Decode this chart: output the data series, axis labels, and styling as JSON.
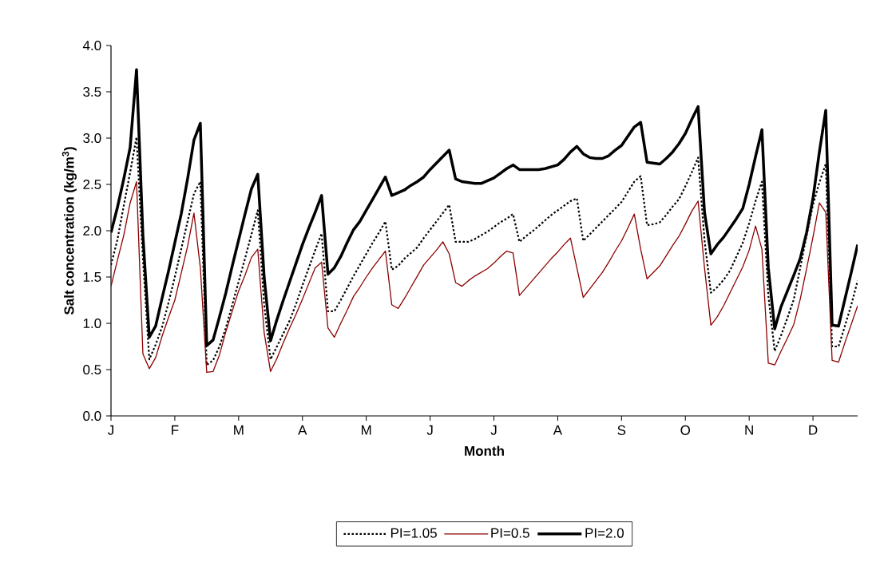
{
  "chart_data": {
    "type": "line",
    "xlabel": "Month",
    "ylabel": "**Salt concentration (kg/m$^{3}$)**",
    "categories": [
      "J",
      null,
      null,
      null,
      null,
      null,
      null,
      null,
      null,
      null,
      "F",
      null,
      null,
      null,
      null,
      null,
      null,
      null,
      null,
      null,
      "M",
      null,
      null,
      null,
      null,
      null,
      null,
      null,
      null,
      null,
      "A",
      null,
      null,
      null,
      null,
      null,
      null,
      null,
      null,
      null,
      "M",
      null,
      null,
      null,
      null,
      null,
      null,
      null,
      null,
      null,
      "J",
      null,
      null,
      null,
      null,
      null,
      null,
      null,
      null,
      null,
      "J",
      null,
      null,
      null,
      null,
      null,
      null,
      null,
      null,
      null,
      "A",
      null,
      null,
      null,
      null,
      null,
      null,
      null,
      null,
      null,
      "S",
      null,
      null,
      null,
      null,
      null,
      null,
      null,
      null,
      null,
      "O",
      null,
      null,
      null,
      null,
      null,
      null,
      null,
      null,
      null,
      "N",
      null,
      null,
      null,
      null,
      null,
      null,
      null,
      null,
      null,
      "D",
      null,
      null,
      null,
      null,
      null,
      null,
      null
    ],
    "ylim": [
      0,
      4
    ],
    "yticks": [
      {
        "value": 0,
        "label": "0.0"
      },
      {
        "value": 0.5,
        "label": "0.5"
      },
      {
        "value": 1,
        "label": "1.0"
      },
      {
        "value": 1.5,
        "label": "1.5"
      },
      {
        "value": 2,
        "label": "2.0"
      },
      {
        "value": 2.5,
        "label": "2.5"
      },
      {
        "value": 3,
        "label": "3.0"
      },
      {
        "value": 3.5,
        "label": "3.5"
      },
      {
        "value": 4,
        "label": "4.0"
      }
    ],
    "legend": "bottom",
    "grid": false,
    "marker": "none",
    "series": [
      {
        "name": "PI=1.05",
        "color": "#000000",
        "line_style": "dotted",
        "values": [
          1.63,
          1.9,
          2.27,
          2.63,
          3.01,
          1.7,
          0.61,
          0.77,
          0.96,
          1.22,
          1.5,
          1.8,
          2.1,
          2.4,
          2.53,
          0.55,
          0.6,
          0.75,
          0.95,
          1.2,
          1.45,
          1.7,
          1.96,
          2.22,
          1.2,
          0.61,
          0.75,
          0.89,
          1.03,
          1.21,
          1.41,
          1.6,
          1.79,
          1.97,
          1.13,
          1.13,
          1.25,
          1.38,
          1.51,
          1.63,
          1.75,
          1.87,
          1.98,
          2.1,
          1.58,
          1.62,
          1.7,
          1.76,
          1.82,
          1.92,
          2.01,
          2.1,
          2.19,
          2.28,
          1.88,
          1.88,
          1.88,
          1.91,
          1.95,
          1.99,
          2.04,
          2.09,
          2.13,
          2.18,
          1.88,
          1.94,
          1.99,
          2.05,
          2.11,
          2.17,
          2.22,
          2.27,
          2.32,
          2.35,
          1.89,
          1.96,
          2.03,
          2.1,
          2.17,
          2.24,
          2.31,
          2.42,
          2.53,
          2.59,
          2.06,
          2.07,
          2.09,
          2.17,
          2.26,
          2.34,
          2.48,
          2.63,
          2.79,
          1.9,
          1.33,
          1.39,
          1.47,
          1.57,
          1.72,
          1.87,
          2.08,
          2.32,
          2.53,
          1.3,
          0.7,
          0.87,
          1.06,
          1.26,
          1.6,
          1.95,
          2.28,
          2.52,
          2.72,
          0.75,
          0.75,
          0.97,
          1.2,
          1.46
        ]
      },
      {
        "name": "PI=0.5",
        "color": "#8b0000",
        "line_style": "solid",
        "values": [
          1.4,
          1.68,
          1.95,
          2.3,
          2.53,
          0.67,
          0.51,
          0.63,
          0.86,
          1.06,
          1.25,
          1.54,
          1.83,
          2.19,
          1.6,
          0.47,
          0.48,
          0.66,
          0.91,
          1.13,
          1.35,
          1.52,
          1.71,
          1.8,
          0.9,
          0.48,
          0.62,
          0.79,
          0.95,
          1.1,
          1.26,
          1.43,
          1.6,
          1.66,
          0.95,
          0.85,
          1.0,
          1.14,
          1.29,
          1.39,
          1.5,
          1.6,
          1.69,
          1.78,
          1.2,
          1.16,
          1.27,
          1.39,
          1.51,
          1.63,
          1.71,
          1.79,
          1.88,
          1.75,
          1.44,
          1.4,
          1.46,
          1.51,
          1.55,
          1.59,
          1.65,
          1.72,
          1.78,
          1.76,
          1.3,
          1.38,
          1.46,
          1.54,
          1.62,
          1.7,
          1.77,
          1.85,
          1.92,
          1.6,
          1.28,
          1.37,
          1.46,
          1.55,
          1.66,
          1.78,
          1.89,
          2.03,
          2.18,
          1.8,
          1.48,
          1.55,
          1.62,
          1.73,
          1.84,
          1.94,
          2.07,
          2.21,
          2.32,
          1.6,
          0.98,
          1.07,
          1.19,
          1.33,
          1.47,
          1.61,
          1.79,
          2.05,
          1.8,
          0.57,
          0.55,
          0.7,
          0.84,
          0.99,
          1.26,
          1.59,
          1.93,
          2.3,
          2.2,
          0.6,
          0.58,
          0.79,
          0.99,
          1.19
        ]
      },
      {
        "name": "PI=2.0",
        "color": "#000000",
        "line_style": "solid",
        "values": [
          1.98,
          2.25,
          2.56,
          2.9,
          3.74,
          1.95,
          0.85,
          0.97,
          1.27,
          1.56,
          1.87,
          2.18,
          2.56,
          2.98,
          3.16,
          0.76,
          0.82,
          1.07,
          1.33,
          1.62,
          1.9,
          2.18,
          2.45,
          2.61,
          1.5,
          0.81,
          1.04,
          1.25,
          1.45,
          1.65,
          1.85,
          2.03,
          2.2,
          2.38,
          1.53,
          1.6,
          1.72,
          1.87,
          2.01,
          2.1,
          2.22,
          2.34,
          2.46,
          2.58,
          2.38,
          2.41,
          2.44,
          2.49,
          2.53,
          2.58,
          2.66,
          2.73,
          2.8,
          2.87,
          2.56,
          2.53,
          2.52,
          2.51,
          2.51,
          2.54,
          2.57,
          2.62,
          2.67,
          2.71,
          2.66,
          2.66,
          2.66,
          2.66,
          2.67,
          2.69,
          2.71,
          2.77,
          2.85,
          2.91,
          2.83,
          2.79,
          2.78,
          2.78,
          2.81,
          2.87,
          2.92,
          3.02,
          3.12,
          3.17,
          2.74,
          2.73,
          2.72,
          2.78,
          2.85,
          2.94,
          3.05,
          3.2,
          3.34,
          2.2,
          1.75,
          1.85,
          1.93,
          2.03,
          2.13,
          2.24,
          2.5,
          2.8,
          3.09,
          1.6,
          0.94,
          1.18,
          1.35,
          1.52,
          1.7,
          1.98,
          2.35,
          2.85,
          3.3,
          0.98,
          0.97,
          1.26,
          1.55,
          1.85
        ]
      }
    ]
  }
}
